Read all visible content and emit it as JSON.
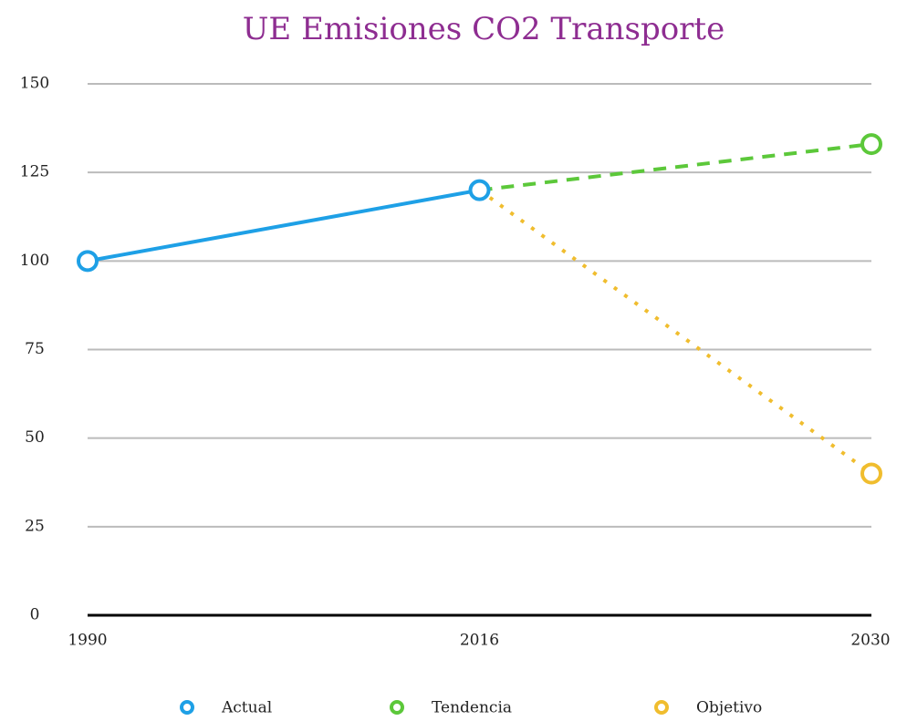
{
  "chart_data": {
    "type": "line",
    "title": "UE Emisiones CO2 Transporte",
    "categories": [
      "1990",
      "2016",
      "2030"
    ],
    "series": [
      {
        "name": "Actual",
        "color": "#1ea0e6",
        "dash": "solid",
        "values": [
          100,
          120,
          null
        ]
      },
      {
        "name": "Tendencia",
        "color": "#5cc83a",
        "dash": "dashed",
        "values": [
          null,
          120,
          133
        ]
      },
      {
        "name": "Objetivo",
        "color": "#f0bd2e",
        "dash": "dotted",
        "values": [
          null,
          120,
          40
        ]
      }
    ],
    "ylim": [
      0,
      150
    ],
    "yticks": [
      0,
      25,
      50,
      75,
      100,
      125,
      150
    ],
    "grid": true,
    "legend": "bottom"
  }
}
